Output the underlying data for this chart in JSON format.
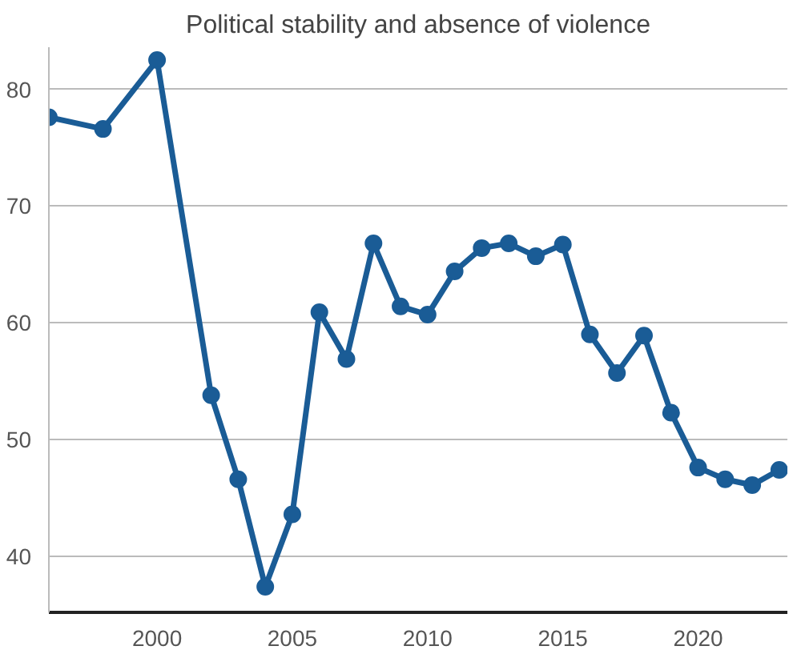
{
  "chart_data": {
    "type": "line",
    "title": "Political stability and absence of violence",
    "x": [
      1996,
      1998,
      2000,
      2002,
      2003,
      2004,
      2005,
      2006,
      2007,
      2008,
      2009,
      2010,
      2011,
      2012,
      2013,
      2014,
      2015,
      2016,
      2017,
      2018,
      2019,
      2020,
      2021,
      2022,
      2023
    ],
    "series": [
      {
        "color": "#1a5c96",
        "values": [
          77.6,
          76.6,
          82.5,
          53.8,
          46.6,
          37.4,
          43.6,
          60.9,
          56.9,
          66.8,
          61.4,
          60.7,
          64.4,
          66.4,
          66.8,
          65.7,
          66.7,
          59.0,
          55.7,
          58.9,
          52.3,
          47.6,
          46.6,
          46.1,
          47.4
        ]
      }
    ],
    "xlim": [
      1996,
      2023.3
    ],
    "xticks": [
      2000,
      2005,
      2010,
      2015,
      2020
    ],
    "ylim": [
      35.2,
      83.6
    ],
    "yticks": [
      40,
      50,
      60,
      70,
      80
    ],
    "grid": "y",
    "marker": "circle",
    "line_style": "solid"
  }
}
